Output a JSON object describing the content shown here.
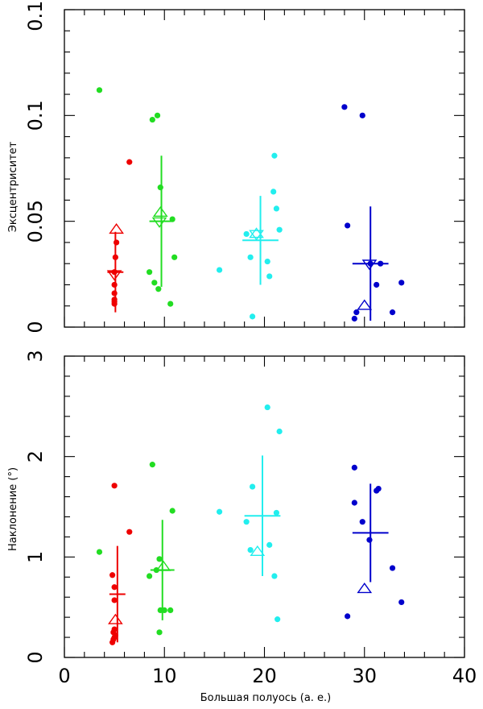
{
  "chart_data": [
    {
      "type": "scatter",
      "title": "",
      "xlabel": "",
      "ylabel": "Эксцентриситет",
      "xlim": [
        0,
        40
      ],
      "ylim": [
        0,
        0.15
      ],
      "x_ticks": [
        "0",
        "10",
        "20",
        "30",
        "40"
      ],
      "x_tick_labels_shown": false,
      "y_ticks": [
        "0",
        "0.05",
        "0.1",
        "0.15"
      ],
      "grid": false,
      "colors": [
        "#ee0000",
        "#22dd22",
        "#22eeee",
        "#0000cc"
      ],
      "series": [
        {
          "color": "#ee0000",
          "points": [
            [
              5.0,
              0.011
            ],
            [
              5.0,
              0.012
            ],
            [
              5.0,
              0.013
            ],
            [
              5.0,
              0.016
            ],
            [
              5.0,
              0.02
            ],
            [
              5.0,
              0.026
            ],
            [
              5.1,
              0.033
            ],
            [
              5.2,
              0.04
            ],
            [
              6.5,
              0.078
            ]
          ],
          "mean": [
            5.1,
            0.026
          ],
          "mean_err": 0.019,
          "triangle_up": [
            5.2,
            0.046
          ],
          "triangle_down": [
            5.0,
            0.025
          ]
        },
        {
          "color": "#22dd22",
          "points": [
            [
              3.5,
              0.112
            ],
            [
              8.5,
              0.026
            ],
            [
              8.8,
              0.098
            ],
            [
              9.0,
              0.021
            ],
            [
              9.3,
              0.1
            ],
            [
              9.4,
              0.018
            ],
            [
              9.6,
              0.066
            ],
            [
              10.6,
              0.011
            ],
            [
              10.8,
              0.051
            ],
            [
              11.0,
              0.033
            ]
          ],
          "mean": [
            9.7,
            0.05
          ],
          "mean_err": 0.031,
          "triangle_up": [
            9.6,
            0.054
          ],
          "triangle_down": [
            9.5,
            0.05
          ]
        },
        {
          "color": "#22eeee",
          "points": [
            [
              15.5,
              0.027
            ],
            [
              18.2,
              0.044
            ],
            [
              18.6,
              0.033
            ],
            [
              18.8,
              0.005
            ],
            [
              20.3,
              0.031
            ],
            [
              20.5,
              0.024
            ],
            [
              20.9,
              0.064
            ],
            [
              21.0,
              0.081
            ],
            [
              21.2,
              0.056
            ],
            [
              21.5,
              0.046
            ]
          ],
          "mean": [
            19.6,
            0.041
          ],
          "mean_err": 0.021,
          "triangle_up": [
            19.2,
            0.044
          ],
          "triangle_down": [
            19.2,
            0.044
          ]
        },
        {
          "color": "#0000cc",
          "points": [
            [
              28.0,
              0.104
            ],
            [
              28.3,
              0.048
            ],
            [
              29.0,
              0.004
            ],
            [
              29.2,
              0.007
            ],
            [
              29.8,
              0.1
            ],
            [
              30.6,
              0.03
            ],
            [
              31.2,
              0.02
            ],
            [
              31.6,
              0.03
            ],
            [
              32.8,
              0.007
            ],
            [
              33.7,
              0.021
            ]
          ],
          "mean": [
            30.6,
            0.03
          ],
          "mean_err": 0.027,
          "triangle_up": [
            30.0,
            0.01
          ],
          "triangle_down": [
            30.5,
            0.03
          ]
        }
      ]
    },
    {
      "type": "scatter",
      "title": "",
      "xlabel": "Большая полуось (а. е.)",
      "ylabel": "Наклонение (°)",
      "xlim": [
        0,
        40
      ],
      "ylim": [
        0,
        3
      ],
      "x_ticks": [
        "0",
        "10",
        "20",
        "30",
        "40"
      ],
      "y_ticks": [
        "0",
        "1",
        "2",
        "3"
      ],
      "grid": false,
      "colors": [
        "#ee0000",
        "#22dd22",
        "#22eeee",
        "#0000cc"
      ],
      "series": [
        {
          "color": "#ee0000",
          "points": [
            [
              4.8,
              0.15
            ],
            [
              4.9,
              0.18
            ],
            [
              4.9,
              0.25
            ],
            [
              4.8,
              0.82
            ],
            [
              5.0,
              0.2
            ],
            [
              5.0,
              0.28
            ],
            [
              5.1,
              0.22
            ],
            [
              5.0,
              0.57
            ],
            [
              5.0,
              0.7
            ],
            [
              5.0,
              1.71
            ],
            [
              6.5,
              1.25
            ]
          ],
          "mean": [
            5.3,
            0.63
          ],
          "mean_err": 0.48,
          "triangle_up": [
            5.1,
            0.37
          ],
          "triangle_down": null
        },
        {
          "color": "#22dd22",
          "points": [
            [
              3.5,
              1.05
            ],
            [
              8.5,
              0.81
            ],
            [
              8.8,
              1.92
            ],
            [
              9.2,
              0.87
            ],
            [
              9.5,
              0.98
            ],
            [
              9.5,
              0.25
            ],
            [
              9.6,
              0.47
            ],
            [
              10.0,
              0.47
            ],
            [
              10.6,
              0.47
            ],
            [
              10.8,
              1.46
            ]
          ],
          "mean": [
            9.8,
            0.87
          ],
          "mean_err": 0.5,
          "triangle_up": [
            9.9,
            0.9
          ],
          "triangle_down": null
        },
        {
          "color": "#22eeee",
          "points": [
            [
              15.5,
              1.45
            ],
            [
              18.2,
              1.35
            ],
            [
              18.6,
              1.07
            ],
            [
              18.8,
              1.7
            ],
            [
              20.3,
              2.49
            ],
            [
              20.5,
              1.12
            ],
            [
              21.0,
              0.81
            ],
            [
              21.2,
              1.44
            ],
            [
              21.3,
              0.38
            ],
            [
              21.5,
              2.25
            ]
          ],
          "mean": [
            19.8,
            1.41
          ],
          "mean_err": 0.6,
          "triangle_up": [
            19.3,
            1.05
          ],
          "triangle_down": null
        },
        {
          "color": "#0000cc",
          "points": [
            [
              28.3,
              0.41
            ],
            [
              29.0,
              1.89
            ],
            [
              29.0,
              1.54
            ],
            [
              29.8,
              1.35
            ],
            [
              30.5,
              1.17
            ],
            [
              31.2,
              1.66
            ],
            [
              31.4,
              1.68
            ],
            [
              32.8,
              0.89
            ],
            [
              33.7,
              0.55
            ]
          ],
          "mean": [
            30.6,
            1.24
          ],
          "mean_err": 0.49,
          "triangle_up": [
            30.0,
            0.68
          ],
          "triangle_down": null
        }
      ]
    }
  ]
}
